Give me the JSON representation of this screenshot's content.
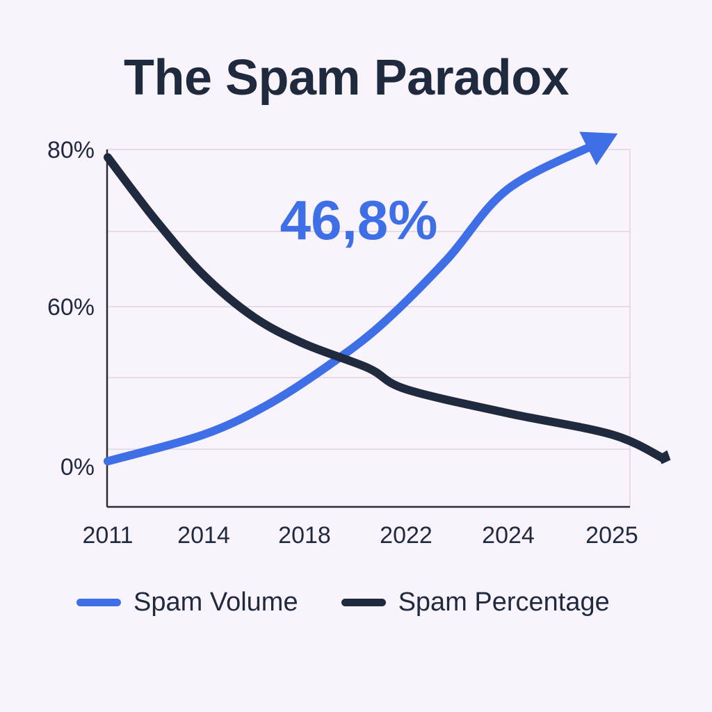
{
  "colors": {
    "background": "#f9f4fb",
    "text": "#1f2a3f",
    "spam_volume": "#3f6fe6",
    "spam_percentage": "#1f2a3f",
    "grid": "#e4dde8",
    "axis": "#2b2b35"
  },
  "chart_data": {
    "type": "line",
    "title": "The Spam Paradox",
    "xlabel": "",
    "ylabel": "",
    "categories": [
      "2011",
      "2014",
      "2018",
      "2022",
      "2024",
      "2025"
    ],
    "y_ticks": [
      {
        "value": 80,
        "label": "80%"
      },
      {
        "value": 60,
        "label": "60%"
      },
      {
        "value": 0,
        "label": "0%"
      }
    ],
    "series": [
      {
        "name": "Spam Volume",
        "color": "#3f6fe6",
        "arrow_end": true,
        "points": [
          {
            "x": 2011.0,
            "y": 2
          },
          {
            "x": 2014.0,
            "y": 12
          },
          {
            "x": 2016.5,
            "y": 23
          },
          {
            "x": 2018.8,
            "y": 37
          },
          {
            "x": 2021.0,
            "y": 53
          },
          {
            "x": 2022.8,
            "y": 66
          },
          {
            "x": 2024.0,
            "y": 75
          },
          {
            "x": 2024.9,
            "y": 81
          }
        ]
      },
      {
        "name": "Spam Percentage",
        "color": "#1f2a3f",
        "arrow_end": false,
        "points": [
          {
            "x": 2011.0,
            "y": 79
          },
          {
            "x": 2012.5,
            "y": 71
          },
          {
            "x": 2014.0,
            "y": 64
          },
          {
            "x": 2016.0,
            "y": 56
          },
          {
            "x": 2018.0,
            "y": 46
          },
          {
            "x": 2020.5,
            "y": 37
          },
          {
            "x": 2022.0,
            "y": 29
          },
          {
            "x": 2024.0,
            "y": 20
          },
          {
            "x": 2025.0,
            "y": 12
          },
          {
            "x": 2025.5,
            "y": 3
          }
        ]
      }
    ],
    "annotation": {
      "text": "46,8%",
      "color": "#3f6fe6"
    },
    "grid": true,
    "legend_position": "bottom"
  }
}
